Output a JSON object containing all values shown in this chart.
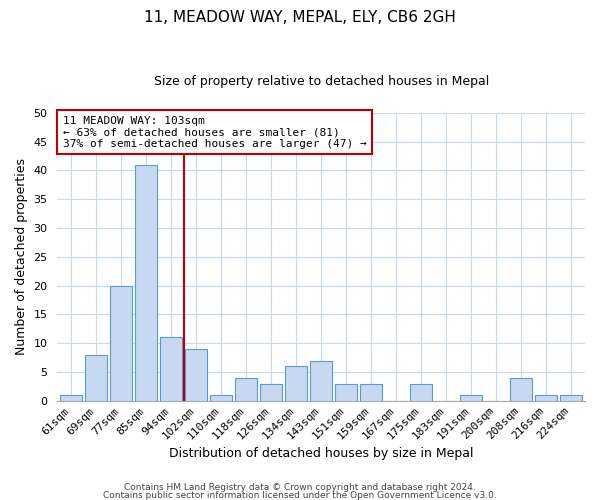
{
  "title": "11, MEADOW WAY, MEPAL, ELY, CB6 2GH",
  "subtitle": "Size of property relative to detached houses in Mepal",
  "xlabel": "Distribution of detached houses by size in Mepal",
  "ylabel": "Number of detached properties",
  "bar_labels": [
    "61sqm",
    "69sqm",
    "77sqm",
    "85sqm",
    "94sqm",
    "102sqm",
    "110sqm",
    "118sqm",
    "126sqm",
    "134sqm",
    "143sqm",
    "151sqm",
    "159sqm",
    "167sqm",
    "175sqm",
    "183sqm",
    "191sqm",
    "200sqm",
    "208sqm",
    "216sqm",
    "224sqm"
  ],
  "bar_values": [
    1,
    8,
    20,
    41,
    11,
    9,
    1,
    4,
    3,
    6,
    7,
    3,
    3,
    0,
    3,
    0,
    1,
    0,
    4,
    1,
    1
  ],
  "bar_color": "#c6d9f0",
  "bar_edge_color": "#5b9bd5",
  "vline_color": "#c00000",
  "vline_x_index": 5,
  "annotation_title": "11 MEADOW WAY: 103sqm",
  "annotation_line1": "← 63% of detached houses are smaller (81)",
  "annotation_line2": "37% of semi-detached houses are larger (47) →",
  "annotation_box_color": "#ffffff",
  "annotation_box_edge": "#c00000",
  "ylim": [
    0,
    50
  ],
  "yticks": [
    0,
    5,
    10,
    15,
    20,
    25,
    30,
    35,
    40,
    45,
    50
  ],
  "footer1": "Contains HM Land Registry data © Crown copyright and database right 2024.",
  "footer2": "Contains public sector information licensed under the Open Government Licence v3.0.",
  "bg_color": "#ffffff",
  "grid_color": "#c8d8ec",
  "title_fontsize": 11,
  "subtitle_fontsize": 9,
  "xlabel_fontsize": 9,
  "ylabel_fontsize": 9,
  "tick_fontsize": 8,
  "ann_fontsize": 8,
  "footer_fontsize": 6.5
}
